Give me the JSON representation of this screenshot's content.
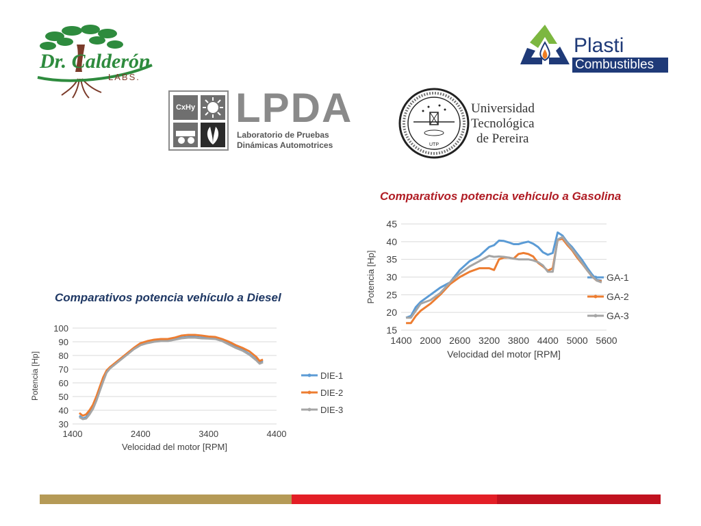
{
  "logos": {
    "calderon": {
      "line1": "Dr. Calderón",
      "line2": "LABS."
    },
    "plasti": {
      "line1": "Plasti",
      "line2": "Combustibles"
    },
    "lpda": {
      "acronym": "LPDA",
      "sub1": "Laboratorio de Pruebas",
      "sub2": "Dinámicas Automotrices",
      "tile_label": "CxHy"
    },
    "utp": {
      "line1": "Universidad",
      "line2": "Tecnológica",
      "line3": "de Pereira",
      "seal_text": "UTP"
    }
  },
  "colors": {
    "series1": "#5b9bd5",
    "series2": "#ed7d31",
    "series3": "#a5a5a5",
    "gold": "#b59a56",
    "red": "#e31e26",
    "darkred": "#c1121f",
    "title_red": "#b01c24",
    "title_blue": "#1f3864"
  },
  "chart_data": [
    {
      "type": "line",
      "title": "Comparativos potencia vehículo a Gasolina",
      "xlabel": "Velocidad del motor [RPM]",
      "ylabel": "Potencia [Hp]",
      "xlim": [
        1400,
        5600
      ],
      "ylim": [
        15,
        45
      ],
      "xticks": [
        1400,
        2000,
        2600,
        3200,
        3800,
        4400,
        5000,
        5600
      ],
      "yticks": [
        15,
        20,
        25,
        30,
        35,
        40,
        45
      ],
      "grid": true,
      "legend": "right",
      "series": [
        {
          "name": "GA-1",
          "x": [
            1500,
            1600,
            1700,
            1800,
            2000,
            2200,
            2400,
            2600,
            2800,
            3000,
            3200,
            3300,
            3400,
            3500,
            3600,
            3700,
            3800,
            3900,
            4000,
            4100,
            4200,
            4300,
            4400,
            4500,
            4600,
            4700,
            4800,
            4900,
            5000,
            5100,
            5200,
            5300,
            5400,
            5500
          ],
          "y": [
            18.5,
            19,
            21.5,
            23,
            25,
            27,
            28.5,
            32,
            34.5,
            36,
            38.5,
            39,
            40.3,
            40.2,
            39.8,
            39.3,
            39.3,
            39.7,
            40,
            39.4,
            38.5,
            37,
            36.3,
            36.8,
            42.6,
            41.7,
            39.8,
            38.4,
            36.6,
            34.8,
            32.7,
            30.8,
            29.2,
            29
          ]
        },
        {
          "name": "GA-2",
          "x": [
            1500,
            1600,
            1700,
            1800,
            2000,
            2200,
            2400,
            2600,
            2800,
            3000,
            3200,
            3300,
            3400,
            3500,
            3600,
            3700,
            3800,
            3900,
            4000,
            4100,
            4200,
            4300,
            4400,
            4500,
            4600,
            4700,
            4800,
            4900,
            5000,
            5100,
            5200,
            5300,
            5400,
            5500
          ],
          "y": [
            17,
            17,
            19,
            20.5,
            22.5,
            25,
            28,
            30,
            31.5,
            32.5,
            32.5,
            32,
            35,
            35.5,
            35.5,
            35.2,
            36.5,
            36.8,
            36.5,
            35.8,
            34,
            33,
            31.8,
            32.5,
            40.5,
            40.8,
            39,
            37.5,
            35.5,
            33.8,
            32,
            30.2,
            29,
            28.8
          ]
        },
        {
          "name": "GA-3",
          "x": [
            1500,
            1600,
            1700,
            1800,
            2000,
            2200,
            2400,
            2600,
            2800,
            3000,
            3200,
            3300,
            3400,
            3500,
            3600,
            3700,
            3800,
            3900,
            4000,
            4100,
            4200,
            4300,
            4400,
            4500,
            4600,
            4700,
            4800,
            4900,
            5000,
            5100,
            5200,
            5300,
            5400,
            5500
          ],
          "y": [
            18.5,
            18.5,
            20.5,
            22.5,
            23.5,
            25.5,
            28.5,
            31,
            33,
            34.5,
            36,
            35.7,
            35.8,
            35.7,
            35.5,
            35.2,
            35,
            35,
            35,
            34.7,
            34.2,
            33.3,
            31.5,
            31.5,
            40.6,
            41.3,
            39.5,
            37.8,
            36,
            34,
            32,
            30.3,
            29,
            28.5
          ]
        }
      ]
    },
    {
      "type": "line",
      "title": "Comparativos potencia vehículo a Diesel",
      "xlabel": "Velocidad del motor [RPM]",
      "ylabel": "Potencia [Hp]",
      "xlim": [
        1400,
        4400
      ],
      "ylim": [
        30,
        100
      ],
      "xticks": [
        1400,
        2400,
        3400,
        4400
      ],
      "yticks": [
        30,
        40,
        50,
        60,
        70,
        80,
        90,
        100
      ],
      "grid": true,
      "legend": "right",
      "series": [
        {
          "name": "DIE-1",
          "x": [
            1500,
            1550,
            1600,
            1650,
            1700,
            1750,
            1800,
            1850,
            1900,
            1950,
            2000,
            2100,
            2200,
            2300,
            2400,
            2500,
            2600,
            2700,
            2800,
            2900,
            3000,
            3100,
            3200,
            3300,
            3400,
            3500,
            3600,
            3700,
            3800,
            3900,
            4000,
            4100,
            4150,
            4200
          ],
          "y": [
            36,
            34,
            35,
            38,
            42,
            48,
            55,
            62,
            68,
            71,
            73,
            77,
            81,
            85,
            88,
            89.5,
            90.5,
            91,
            91,
            92,
            93,
            93.5,
            93.5,
            93,
            92.8,
            92.5,
            91,
            88.5,
            86,
            84,
            81,
            77,
            75,
            76
          ]
        },
        {
          "name": "DIE-2",
          "x": [
            1500,
            1550,
            1600,
            1650,
            1700,
            1750,
            1800,
            1850,
            1900,
            1950,
            2000,
            2100,
            2200,
            2300,
            2400,
            2500,
            2600,
            2700,
            2800,
            2900,
            3000,
            3100,
            3200,
            3300,
            3400,
            3500,
            3600,
            3700,
            3800,
            3900,
            4000,
            4100,
            4150,
            4200
          ],
          "y": [
            38,
            36,
            37,
            40,
            44,
            50,
            57,
            64,
            69,
            71.5,
            73.5,
            77.5,
            81.5,
            85.5,
            89,
            90.5,
            91.5,
            92,
            92,
            93,
            94.5,
            95,
            95,
            94.5,
            93.8,
            93.5,
            92,
            90,
            87.5,
            85.5,
            83,
            79,
            76,
            77
          ]
        },
        {
          "name": "DIE-3",
          "x": [
            1500,
            1550,
            1600,
            1650,
            1700,
            1750,
            1800,
            1850,
            1900,
            1950,
            2000,
            2100,
            2200,
            2300,
            2400,
            2500,
            2600,
            2700,
            2800,
            2900,
            3000,
            3100,
            3200,
            3300,
            3400,
            3500,
            3600,
            3700,
            3800,
            3900,
            4000,
            4100,
            4150,
            4200
          ],
          "y": [
            35,
            33.5,
            34,
            37,
            41,
            47,
            54,
            61,
            67.5,
            70.5,
            72.5,
            76.5,
            80.5,
            84.5,
            87.5,
            89,
            90,
            90.5,
            90.5,
            91.5,
            92.5,
            93,
            93,
            92.5,
            92.3,
            92,
            90.5,
            88,
            85.5,
            83.5,
            80.5,
            76.5,
            74,
            75
          ]
        }
      ]
    }
  ]
}
